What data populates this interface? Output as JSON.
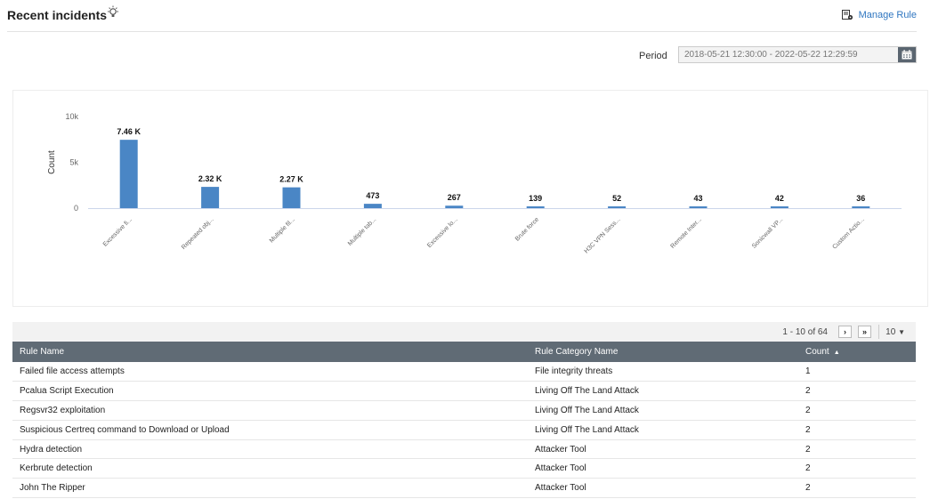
{
  "header": {
    "title": "Recent incidents",
    "manage_rule_label": "Manage Rule"
  },
  "period": {
    "label": "Period",
    "value": "2018-05-21 12:30:00 - 2022-05-22 12:29:59"
  },
  "chart_data": {
    "type": "bar",
    "ylabel": "Count",
    "ylim": [
      0,
      10000
    ],
    "yticks": [
      0,
      5000,
      10000
    ],
    "ytick_labels": [
      "0",
      "5k",
      "10k"
    ],
    "categories": [
      "Excessive fi...",
      "Repeated obj...",
      "Multiple fil...",
      "Multiple tab...",
      "Excessive lo...",
      "Brute force",
      "H3C VPN Sess...",
      "Remote Inter...",
      "Sonicwall VP...",
      "Custom Actio..."
    ],
    "values": [
      7460,
      2320,
      2270,
      473,
      267,
      139,
      52,
      43,
      42,
      36
    ],
    "data_labels": [
      "7.46 K",
      "2.32 K",
      "2.27 K",
      "473",
      "267",
      "139",
      "52",
      "43",
      "42",
      "36"
    ],
    "bar_color": "#4a86c5",
    "grid": false
  },
  "pager": {
    "summary": "1 - 10 of 64",
    "next": "›",
    "last": "»",
    "per_page": "10"
  },
  "table": {
    "columns": [
      "Rule Name",
      "Rule Category Name",
      "Count"
    ],
    "sort_indicator": "▲",
    "rows": [
      [
        "Failed file access attempts",
        "File integrity threats",
        "1"
      ],
      [
        "Pcalua Script Execution",
        "Living Off The Land Attack",
        "2"
      ],
      [
        "Regsvr32 exploitation",
        "Living Off The Land Attack",
        "2"
      ],
      [
        "Suspicious Certreq command to Download or Upload",
        "Living Off The Land Attack",
        "2"
      ],
      [
        "Hydra detection",
        "Attacker Tool",
        "2"
      ],
      [
        "Kerbrute detection",
        "Attacker Tool",
        "2"
      ],
      [
        "John The Ripper",
        "Attacker Tool",
        "2"
      ]
    ]
  }
}
